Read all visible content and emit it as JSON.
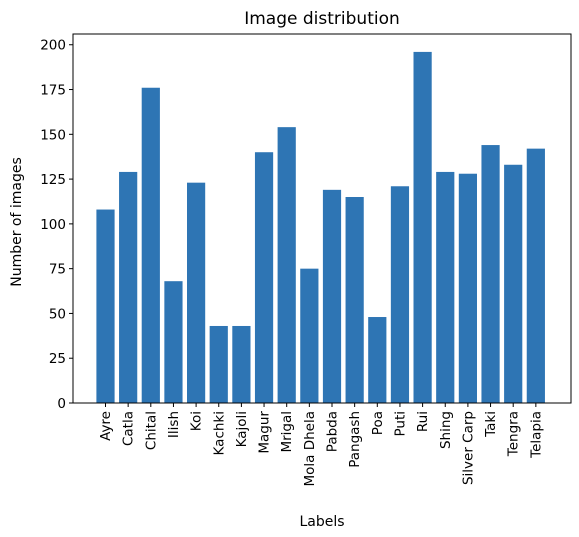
{
  "chart_data": {
    "type": "bar",
    "title": "Image distribution",
    "xlabel": "Labels",
    "ylabel": "Number of images",
    "categories": [
      "Ayre",
      "Catla",
      "Chital",
      "Ilish",
      "Koi",
      "Kachki",
      "Kajoli",
      "Magur",
      "Mrigal",
      "Mola Dhela",
      "Pabda",
      "Pangash",
      "Poa",
      "Puti",
      "Rui",
      "Shing",
      "Silver Carp",
      "Taki",
      "Tengra",
      "Telapia"
    ],
    "values": [
      108,
      129,
      176,
      68,
      123,
      43,
      43,
      140,
      154,
      75,
      119,
      115,
      48,
      121,
      196,
      129,
      128,
      144,
      133,
      142
    ],
    "ylim": [
      0,
      206
    ],
    "yticks": [
      0,
      25,
      50,
      75,
      100,
      125,
      150,
      175,
      200
    ],
    "grid": false,
    "colors": {
      "bar": "#2e75b4",
      "axis": "#000000"
    }
  }
}
